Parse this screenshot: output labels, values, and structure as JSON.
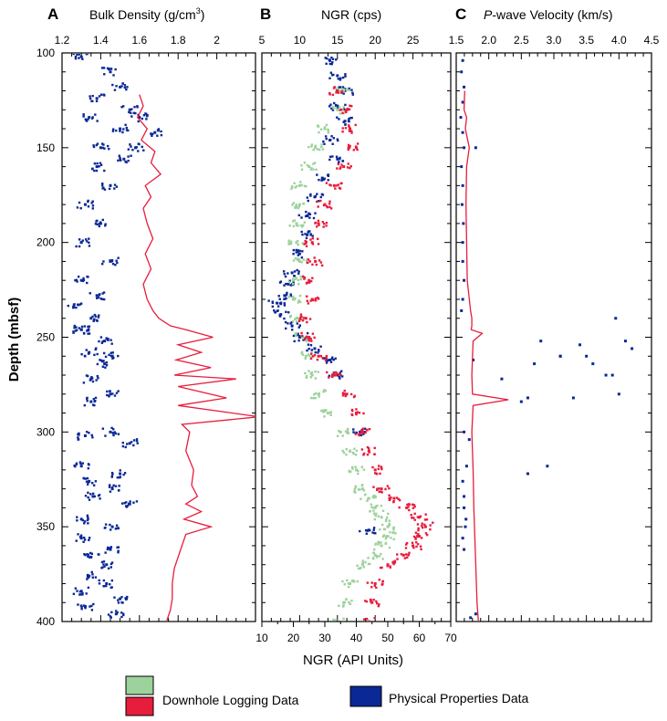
{
  "figure": {
    "ylabel": "Depth (mbsf)",
    "bottom_xlabel": "NGR (API Units)",
    "legend": {
      "downhole_label": "Downhole Logging Data",
      "physprop_label": "Physical Properties Data"
    }
  },
  "chart_data": [
    {
      "panel_letter": "A",
      "title_main": "Bulk Density (g/cm",
      "title_sup": "3",
      "title_end": ")",
      "type": "scatter",
      "xlim": [
        1.2,
        2.2
      ],
      "ylim": [
        400,
        100
      ],
      "x_ticks": [
        1.2,
        1.4,
        1.6,
        1.8,
        2
      ],
      "x_tick_labels": [
        "1.2",
        "1.4",
        "1.6",
        "1.8",
        "2"
      ],
      "y_ticks": [
        100,
        150,
        200,
        250,
        300,
        350,
        400
      ],
      "y_tick_labels": [
        "100",
        "150",
        "200",
        "250",
        "300",
        "350",
        "400"
      ],
      "series": [
        {
          "name": "Physical Properties Data",
          "kind": "points",
          "color": "#0a2896",
          "x": [
            1.3,
            1.45,
            1.5,
            1.38,
            1.55,
            1.34,
            1.5,
            1.58,
            1.6,
            1.68,
            1.38,
            1.45,
            1.32,
            1.4,
            1.3,
            1.45,
            1.3,
            1.38,
            1.26,
            1.35,
            1.3,
            1.42,
            1.34,
            1.42,
            1.35,
            1.45,
            1.35,
            1.45,
            1.32,
            1.55,
            1.3,
            1.5,
            1.34,
            1.46,
            1.36,
            1.55,
            1.3,
            1.46,
            1.3,
            1.45,
            1.35,
            1.43,
            1.34,
            1.43,
            1.3,
            1.5,
            1.32,
            1.48,
            1.4,
            1.52,
            1.3,
            1.46
          ],
          "y": [
            102,
            110,
            118,
            124,
            130,
            134,
            140,
            150,
            134,
            142,
            160,
            170,
            180,
            190,
            200,
            210,
            220,
            228,
            234,
            240,
            246,
            252,
            258,
            264,
            272,
            280,
            284,
            300,
            302,
            306,
            318,
            322,
            326,
            330,
            334,
            338,
            346,
            350,
            356,
            362,
            366,
            370,
            376,
            380,
            384,
            388,
            392,
            396,
            150,
            156,
            246,
            260
          ]
        },
        {
          "name": "Downhole Logging Data",
          "kind": "line",
          "color": "#e81c3c",
          "x": [
            1.6,
            1.62,
            1.59,
            1.64,
            1.61,
            1.68,
            1.66,
            1.71,
            1.63,
            1.66,
            1.62,
            1.64,
            1.67,
            1.63,
            1.66,
            1.62,
            1.64,
            1.67,
            1.7,
            1.76,
            1.84,
            1.98,
            1.8,
            1.92,
            1.79,
            1.97,
            1.78,
            2.1,
            1.8,
            2.05,
            1.8,
            2.22,
            1.82,
            1.86,
            1.84,
            1.88,
            1.87,
            1.9,
            1.84,
            1.92,
            1.83,
            1.97,
            1.84,
            1.82,
            1.8,
            1.78,
            1.77,
            1.77,
            1.76,
            1.74
          ],
          "y": [
            122,
            128,
            134,
            140,
            146,
            152,
            158,
            164,
            170,
            176,
            182,
            190,
            198,
            206,
            214,
            222,
            230,
            236,
            240,
            244,
            246,
            250,
            254,
            258,
            262,
            266,
            270,
            272,
            276,
            282,
            286,
            292,
            296,
            300,
            310,
            320,
            328,
            334,
            338,
            342,
            346,
            350,
            354,
            360,
            366,
            372,
            380,
            388,
            394,
            400
          ]
        }
      ]
    },
    {
      "panel_letter": "B",
      "title_main": "NGR (cps)",
      "type": "scatter",
      "xlim": [
        5,
        30
      ],
      "ylim": [
        400,
        100
      ],
      "x_ticks": [
        5,
        10,
        15,
        20,
        25
      ],
      "x_tick_labels": [
        "5",
        "10",
        "15",
        "20",
        "25"
      ],
      "x2_lim": [
        10,
        70
      ],
      "x2_ticks": [
        10,
        20,
        30,
        40,
        50,
        60,
        70
      ],
      "x2_tick_labels": [
        "10",
        "20",
        "30",
        "40",
        "50",
        "60",
        "70"
      ],
      "y_ticks": [
        100,
        150,
        200,
        250,
        300,
        350,
        400
      ],
      "y_tick_labels": [
        "100",
        "150",
        "200",
        "250",
        "300",
        "350",
        "400"
      ],
      "series": [
        {
          "name": "Physical Properties Data",
          "kind": "points",
          "color": "#0a2896",
          "axis": "top",
          "x": [
            14,
            15,
            16,
            15,
            16,
            14,
            15,
            13,
            12,
            11,
            11,
            10,
            9,
            8.5,
            8,
            7,
            7.5,
            9,
            10,
            12,
            14,
            15,
            18,
            19
          ],
          "y": [
            104,
            112,
            120,
            128,
            136,
            146,
            156,
            166,
            176,
            186,
            196,
            206,
            216,
            222,
            228,
            232,
            238,
            244,
            250,
            256,
            262,
            270,
            300,
            352
          ]
        },
        {
          "name": "Downhole Logging Data (green)",
          "kind": "points",
          "color": "#9cd29c",
          "axis": "bottom",
          "x": [
            36,
            34,
            30,
            27,
            25,
            22,
            22,
            21,
            21,
            22,
            20,
            20,
            21,
            23,
            24,
            26,
            28,
            31,
            35,
            38,
            40,
            42,
            44,
            46,
            48,
            50,
            50,
            48,
            46,
            42,
            38,
            36,
            34
          ],
          "y": [
            120,
            130,
            140,
            150,
            160,
            170,
            180,
            190,
            200,
            210,
            220,
            230,
            240,
            250,
            260,
            270,
            280,
            290,
            300,
            310,
            320,
            330,
            335,
            340,
            345,
            350,
            355,
            360,
            365,
            370,
            380,
            390,
            400
          ]
        },
        {
          "name": "Downhole Logging Data (red)",
          "kind": "points",
          "color": "#e81c3c",
          "axis": "bottom",
          "x": [
            34,
            37,
            38,
            40,
            36,
            33,
            30,
            28,
            26,
            27,
            25,
            26,
            24,
            25,
            28,
            33,
            37,
            40,
            42,
            44,
            46,
            48,
            52,
            56,
            60,
            62,
            60,
            58,
            55,
            50,
            46,
            45,
            44
          ],
          "y": [
            120,
            130,
            140,
            150,
            160,
            170,
            180,
            190,
            200,
            210,
            220,
            230,
            240,
            250,
            260,
            270,
            280,
            290,
            300,
            310,
            320,
            330,
            335,
            340,
            345,
            350,
            355,
            360,
            365,
            370,
            380,
            390,
            400
          ]
        }
      ]
    },
    {
      "panel_letter": "C",
      "title_pre": "P",
      "title_main": "-wave Velocity (km/s)",
      "type": "scatter",
      "xlim": [
        1.5,
        4.5
      ],
      "ylim": [
        400,
        100
      ],
      "x_ticks": [
        1.5,
        2,
        2.5,
        3,
        3.5,
        4,
        4.5
      ],
      "x_tick_labels": [
        "1.5",
        "2.0",
        "2.5",
        "3.0",
        "3.5",
        "4.0",
        "4.5"
      ],
      "y_ticks": [
        100,
        150,
        200,
        250,
        300,
        350,
        400
      ],
      "y_tick_labels": [
        "100",
        "150",
        "200",
        "250",
        "300",
        "350",
        "400"
      ],
      "series": [
        {
          "name": "Physical Properties Data",
          "kind": "points",
          "color": "#0a2896",
          "x": [
            1.6,
            1.58,
            1.62,
            1.6,
            1.57,
            1.6,
            1.62,
            1.58,
            1.6,
            1.59,
            1.61,
            1.6,
            1.6,
            1.62,
            1.6,
            1.58,
            1.62,
            1.7,
            1.66,
            1.6,
            1.62,
            1.62,
            1.65,
            1.64,
            1.6,
            1.62,
            1.72,
            1.8,
            3.95,
            4.1,
            4.2,
            3.4,
            3.5,
            3.1,
            2.8,
            2.7,
            3.6,
            3.8,
            4.0,
            3.3,
            2.5,
            2.6,
            2.2,
            1.76,
            1.8,
            2.6,
            2.9,
            3.1,
            3.9
          ],
          "y": [
            104,
            110,
            118,
            126,
            134,
            142,
            150,
            160,
            170,
            180,
            190,
            200,
            210,
            220,
            230,
            236,
            300,
            304,
            318,
            326,
            334,
            340,
            346,
            350,
            356,
            362,
            398,
            396,
            240,
            252,
            256,
            254,
            260,
            260,
            252,
            264,
            264,
            270,
            280,
            282,
            284,
            282,
            272,
            262,
            150,
            322,
            318,
            260,
            270
          ]
        },
        {
          "name": "Downhole Logging Data",
          "kind": "line",
          "color": "#e81c3c",
          "x": [
            1.63,
            1.62,
            1.66,
            1.64,
            1.7,
            1.66,
            1.65,
            1.66,
            1.67,
            1.72,
            1.74,
            1.74,
            1.73,
            1.9,
            1.76,
            1.74,
            1.75,
            2.3,
            1.76,
            1.74,
            1.76,
            1.77,
            1.79,
            1.8,
            1.82,
            1.84
          ],
          "y": [
            120,
            130,
            134,
            140,
            150,
            160,
            180,
            200,
            220,
            236,
            240,
            244,
            246,
            248,
            252,
            270,
            280,
            283,
            286,
            300,
            320,
            340,
            360,
            370,
            390,
            400
          ]
        }
      ]
    }
  ]
}
